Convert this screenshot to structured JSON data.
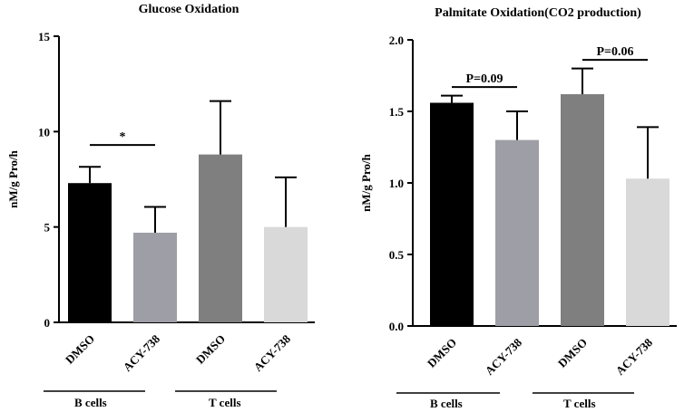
{
  "chart_data": [
    {
      "type": "bar",
      "title": "Glucose Oxidation",
      "ylabel": "nM/g Pro/h",
      "xlabel": "",
      "ylim": [
        0,
        15
      ],
      "yticks": [
        "0",
        "5",
        "10",
        "15"
      ],
      "categories": [
        "DMSO",
        "ACY-738",
        "DMSO",
        "ACY-738"
      ],
      "values": [
        7.3,
        4.7,
        8.8,
        5.0
      ],
      "errors": [
        0.85,
        1.35,
        2.8,
        2.6
      ],
      "colors": [
        "#000000",
        "#9e9ea6",
        "#7f7f7f",
        "#d9d9d9"
      ],
      "groups": [
        {
          "label": "B cells",
          "members": [
            0,
            1
          ]
        },
        {
          "label": "T cells",
          "members": [
            2,
            3
          ]
        }
      ],
      "annotations": [
        {
          "text": "*",
          "from": 0,
          "to": 1,
          "y": 9.3
        }
      ]
    },
    {
      "type": "bar",
      "title": "Palmitate Oxidation(CO2 production)",
      "ylabel": "nM/g Pro/h",
      "xlabel": "",
      "ylim": [
        0,
        2.0
      ],
      "yticks": [
        "0.0",
        "0.5",
        "1.0",
        "1.5",
        "2.0"
      ],
      "categories": [
        "DMSO",
        "ACY-738",
        "DMSO",
        "ACY-738"
      ],
      "values": [
        1.56,
        1.3,
        1.62,
        1.03
      ],
      "errors": [
        0.05,
        0.2,
        0.18,
        0.36
      ],
      "colors": [
        "#000000",
        "#9e9ea6",
        "#7f7f7f",
        "#d9d9d9"
      ],
      "groups": [
        {
          "label": "B cells",
          "members": [
            0,
            1
          ]
        },
        {
          "label": "T cells",
          "members": [
            2,
            3
          ]
        }
      ],
      "annotations": [
        {
          "text": "P=0.09",
          "from": 0,
          "to": 1,
          "y": 1.67
        },
        {
          "text": "P=0.06",
          "from": 2,
          "to": 3,
          "y": 1.86
        }
      ]
    }
  ]
}
